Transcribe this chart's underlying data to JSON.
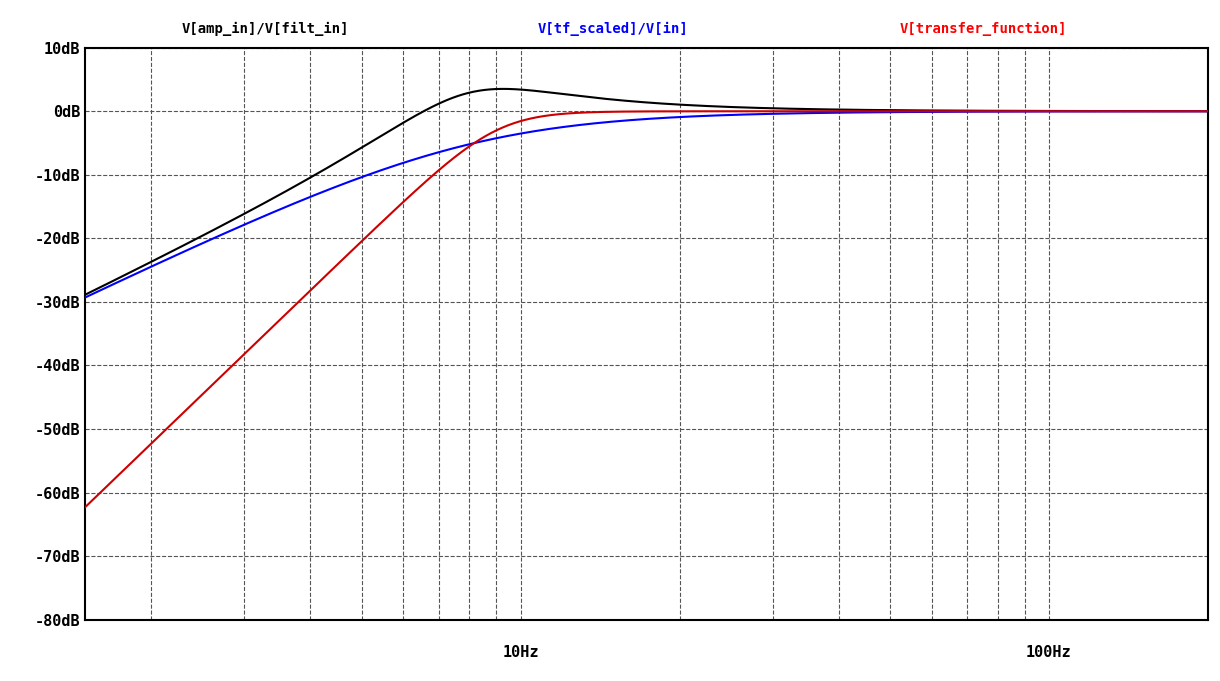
{
  "title_black": "V[amp_in]/V[filt_in]",
  "title_blue": "V[tf_scaled]/V[in]",
  "title_red": "V[transfer_function]",
  "background_color": "#ffffff",
  "plot_bg_color": "#ffffff",
  "grid_color": "#555555",
  "ylim": [
    -80,
    10
  ],
  "yticks": [
    10,
    0,
    -10,
    -20,
    -30,
    -40,
    -50,
    -60,
    -70,
    -80
  ],
  "ytick_labels": [
    "10dB",
    "0dB",
    "-10dB",
    "-20dB",
    "-30dB",
    "-40dB",
    "-50dB",
    "-60dB",
    "-70dB",
    "-80dB"
  ],
  "xmin": 1.5,
  "xmax": 200.0,
  "xlabel_10": "10Hz",
  "xlabel_100": "100Hz",
  "curve_black": {
    "color": "#000000",
    "f0": 8.0,
    "Q": 1.4,
    "order": 2
  },
  "curve_blue": {
    "color": "#0000ff",
    "f0": 8.0,
    "Q": 0.55,
    "order": 2
  },
  "curve_red": {
    "color": "#cc0000",
    "f0": 9.0,
    "Q1": 0.54,
    "Q2": 1.31,
    "order": 4
  }
}
